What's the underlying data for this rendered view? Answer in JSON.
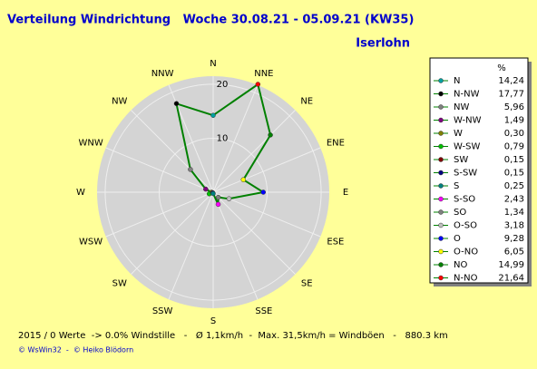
{
  "chart_data": {
    "type": "radar",
    "title": "Verteilung Windrichtung   Woche 30.08.21 - 05.09.21 (KW35)",
    "subtitle": "Iserlohn",
    "axis_labels": [
      "N",
      "NNE",
      "NE",
      "ENE",
      "E",
      "ESE",
      "SE",
      "SSE",
      "S",
      "SSW",
      "SW",
      "WSW",
      "W",
      "WNW",
      "NW",
      "NNW"
    ],
    "legend_title": "%",
    "categories": [
      "N",
      "N-NW",
      "NW",
      "W-NW",
      "W",
      "W-SW",
      "SW",
      "S-SW",
      "S",
      "S-SO",
      "SO",
      "O-SO",
      "O",
      "O-NO",
      "NO",
      "N-NO"
    ],
    "values": [
      14.24,
      17.77,
      5.96,
      1.49,
      0.3,
      0.79,
      0.15,
      0.15,
      0.25,
      2.43,
      1.34,
      3.18,
      9.28,
      6.05,
      14.99,
      21.64
    ],
    "value_labels": [
      "14,24",
      "17,77",
      "5,96",
      "1,49",
      "0,30",
      "0,79",
      "0,15",
      "0,15",
      "0,25",
      "2,43",
      "1,34",
      "3,18",
      "9,28",
      "6,05",
      "14,99",
      "21,64"
    ],
    "colors": [
      "#00a0a0",
      "#000000",
      "#808080",
      "#800080",
      "#808000",
      "#00c000",
      "#800000",
      "#000080",
      "#008080",
      "#ff00ff",
      "#808080",
      "#c0c0c0",
      "#0000ff",
      "#ffff00",
      "#008000",
      "#ff0000"
    ],
    "line_color": "#008000",
    "rlim": [
      0,
      21.5
    ],
    "rticks": [
      10,
      20
    ],
    "footer": "2015 / 0 Werte  -> 0.0% Windstille   -   Ø 1,1km/h  -  Max. 31,5km/h = Windböen   -   880.3 km",
    "credits": "© WsWin32  -  © Heiko Blödorn"
  }
}
